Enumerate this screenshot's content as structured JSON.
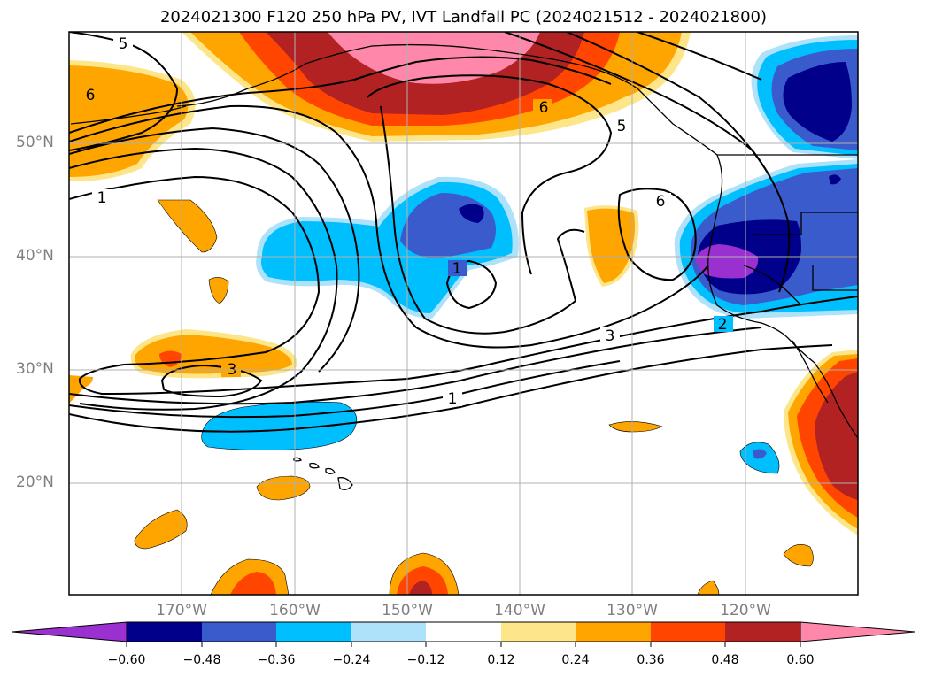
{
  "title": "2024021300 F120 250 hPa PV, IVT Landfall PC (2024021512 - 2024021800)",
  "lat_labels": [
    "50°N",
    "40°N",
    "30°N",
    "20°N"
  ],
  "lon_labels": [
    "170°W",
    "160°W",
    "150°W",
    "140°W",
    "130°W",
    "120°W"
  ],
  "contour_labels": [
    "5",
    "6",
    "1",
    "6",
    "5",
    "6",
    "1",
    "3",
    "3",
    "1",
    "2"
  ],
  "colorbar": {
    "ticks": [
      "−0.60",
      "−0.48",
      "−0.36",
      "−0.24",
      "−0.12",
      "0.12",
      "0.24",
      "0.36",
      "0.48",
      "0.60"
    ],
    "colors": [
      "#9b30d0",
      "#00008b",
      "#3a5bcc",
      "#00bfff",
      "#ade2fa",
      "#ffffff",
      "#fde68a",
      "#ffa500",
      "#ff4500",
      "#b22222",
      "#ff88aa"
    ]
  },
  "colors": {
    "orange": "#ffa500",
    "red": "#ff4500",
    "darkred": "#b22222",
    "pink": "#ff88aa",
    "yellow": "#fde68a",
    "cyan": "#00bfff",
    "lightblue": "#ade2fa",
    "royal": "#3a5bcc",
    "navy": "#00008b",
    "purple": "#9b30d0"
  }
}
